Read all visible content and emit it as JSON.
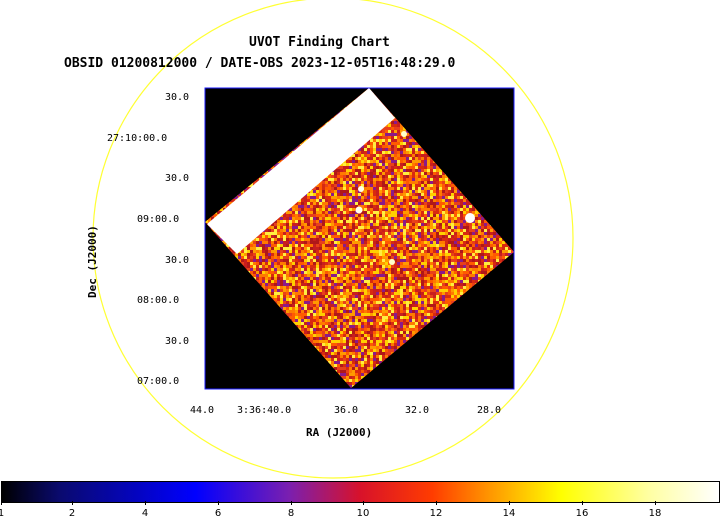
{
  "title": "UVOT Finding Chart",
  "subtitle": "OBSID 01200812000 / DATE-OBS 2023-12-05T16:48:29.0",
  "xlabel": "RA (J2000)",
  "ylabel": "Dec (J2000)",
  "dec_ticks": [
    "30.0",
    "27:10:00.0",
    "30.0",
    "09:00.0",
    "30.0",
    "08:00.0",
    "30.0",
    "07:00.0"
  ],
  "ra_ticks": [
    "44.0",
    "3:36:40.0",
    "36.0",
    "32.0",
    "28.0"
  ],
  "colorbar": {
    "labels": [
      "1",
      "2",
      "4",
      "6",
      "8",
      "10",
      "12",
      "14",
      "16",
      "18"
    ],
    "colormap": "heat (black-blue-purple-red-orange-yellow-white)"
  },
  "colors": {
    "circle": "#ffff33",
    "frame": "#1a1aff",
    "background": "#000000",
    "edge_band": "#ffffff"
  }
}
